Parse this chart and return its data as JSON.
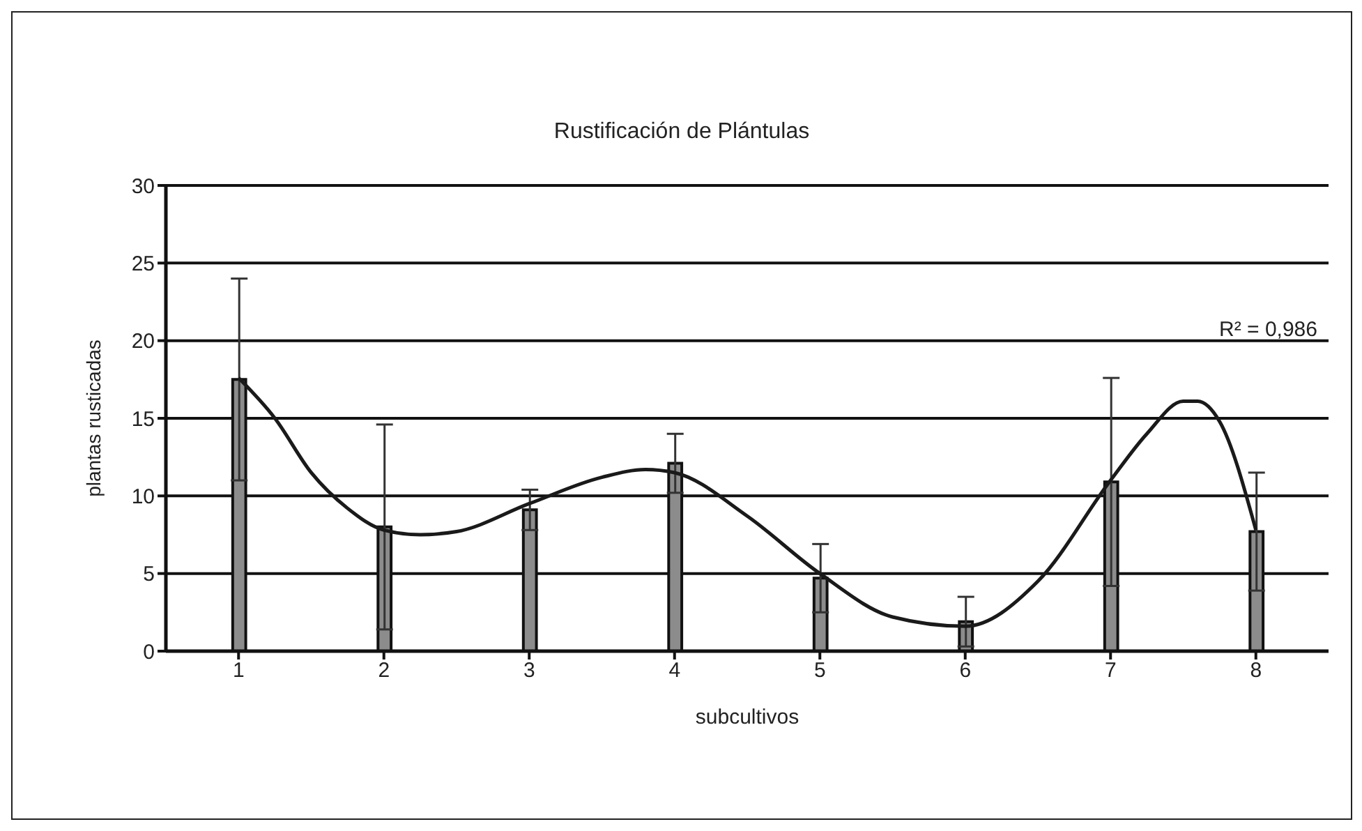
{
  "chart_data": {
    "type": "bar",
    "title": "Rustificación de Plántulas",
    "xlabel": "subcultivos",
    "ylabel": "plantas rusticadas",
    "x": [
      1,
      2,
      3,
      4,
      5,
      6,
      7,
      8
    ],
    "xlim": [
      0.5,
      8.5
    ],
    "xticks": [
      1,
      2,
      3,
      4,
      5,
      6,
      7,
      8
    ],
    "ylim": [
      0,
      30
    ],
    "yticks": [
      0,
      5,
      10,
      15,
      20,
      25,
      30
    ],
    "grid": "y",
    "series": [
      {
        "color": "#8c8c8c",
        "values": [
          17.5,
          8,
          9.1,
          12.1,
          4.7,
          1.9,
          10.9,
          7.7
        ],
        "errors": [
          6.5,
          6.6,
          1.3,
          1.9,
          2.2,
          1.6,
          6.7,
          3.8
        ]
      },
      {
        "type": "line",
        "color": "#1a1a1a",
        "x": [
          1,
          1.25,
          1.5,
          1.75,
          2,
          2.25,
          2.5,
          3,
          3.5,
          3.8,
          4,
          4.5,
          5,
          5.5,
          6,
          6.5,
          7,
          7.25,
          7.5,
          7.6,
          7.75,
          8
        ],
        "values": [
          17.6,
          15,
          11.5,
          9.2,
          7.8,
          7.5,
          7.7,
          9.5,
          11.2,
          11.7,
          11.5,
          8.7,
          5,
          2.2,
          1.6,
          4.5,
          11,
          14,
          16.1,
          16.1,
          14.8,
          7.8
        ]
      }
    ],
    "annotations": [
      "R² = 0,986"
    ]
  }
}
